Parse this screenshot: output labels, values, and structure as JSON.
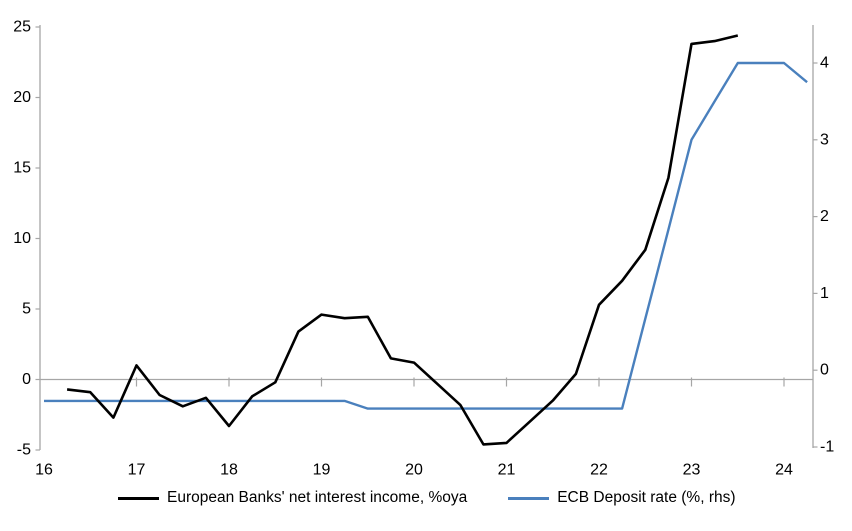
{
  "chart_data": {
    "type": "line",
    "title": "",
    "x_axis": {
      "tick_values": [
        16,
        17,
        18,
        19,
        20,
        21,
        22,
        23,
        24
      ],
      "tick_labels": [
        "16",
        "17",
        "18",
        "19",
        "20",
        "21",
        "22",
        "23",
        "24"
      ],
      "range": [
        15.95,
        24.35
      ],
      "tick_style": "on-zero-gridline"
    },
    "left_y_axis": {
      "tick_values": [
        25,
        20,
        15,
        10,
        5,
        0,
        -5
      ],
      "range": [
        -5,
        25
      ]
    },
    "right_y_axis": {
      "tick_values": [
        4,
        3,
        2,
        1,
        0,
        -1
      ],
      "range": [
        -1,
        4.5
      ]
    },
    "grid": "zero-line-only",
    "legend_position": "bottom",
    "series": [
      {
        "name": "European Banks' net interest income, %oya",
        "axis": "left",
        "color": "#000000",
        "width": 2.6,
        "x": [
          16.25,
          16.5,
          16.75,
          17.0,
          17.25,
          17.5,
          17.75,
          18.0,
          18.25,
          18.5,
          18.75,
          19.0,
          19.25,
          19.5,
          19.75,
          20.0,
          20.25,
          20.5,
          20.75,
          21.0,
          21.25,
          21.5,
          21.75,
          22.0,
          22.25,
          22.5,
          22.75,
          23.0,
          23.25,
          23.5
        ],
        "values": [
          -0.7,
          -0.9,
          -2.7,
          1.0,
          -1.1,
          -1.9,
          -1.3,
          -3.3,
          -1.2,
          -0.2,
          3.4,
          4.6,
          4.35,
          4.45,
          1.5,
          1.2,
          -0.3,
          -1.8,
          -4.6,
          -4.5,
          -3.0,
          -1.5,
          0.4,
          5.3,
          7.0,
          9.2,
          14.3,
          23.8,
          24.0,
          24.4
        ]
      },
      {
        "name": "ECB Deposit rate (%, rhs)",
        "axis": "right",
        "color": "#4a80bd",
        "width": 2.4,
        "x": [
          16.0,
          16.25,
          16.5,
          16.75,
          17.0,
          17.25,
          17.5,
          17.75,
          18.0,
          18.25,
          18.5,
          18.75,
          19.0,
          19.25,
          19.5,
          19.75,
          20.0,
          20.25,
          20.5,
          20.75,
          21.0,
          21.25,
          21.5,
          21.75,
          22.0,
          22.25,
          22.5,
          22.75,
          23.0,
          23.25,
          23.5,
          23.75,
          24.0,
          24.25
        ],
        "values": [
          -0.4,
          -0.4,
          -0.4,
          -0.4,
          -0.4,
          -0.4,
          -0.4,
          -0.4,
          -0.4,
          -0.4,
          -0.4,
          -0.4,
          -0.4,
          -0.4,
          -0.5,
          -0.5,
          -0.5,
          -0.5,
          -0.5,
          -0.5,
          -0.5,
          -0.5,
          -0.5,
          -0.5,
          -0.5,
          -0.5,
          0.67,
          1.83,
          3.0,
          3.5,
          4.0,
          4.0,
          4.0,
          3.75
        ]
      }
    ]
  },
  "colors": {
    "background": "#ffffff",
    "axis": "#a6a6a6",
    "text": "#000000",
    "nii_line": "#000000",
    "ecb_line": "#4a80bd"
  }
}
